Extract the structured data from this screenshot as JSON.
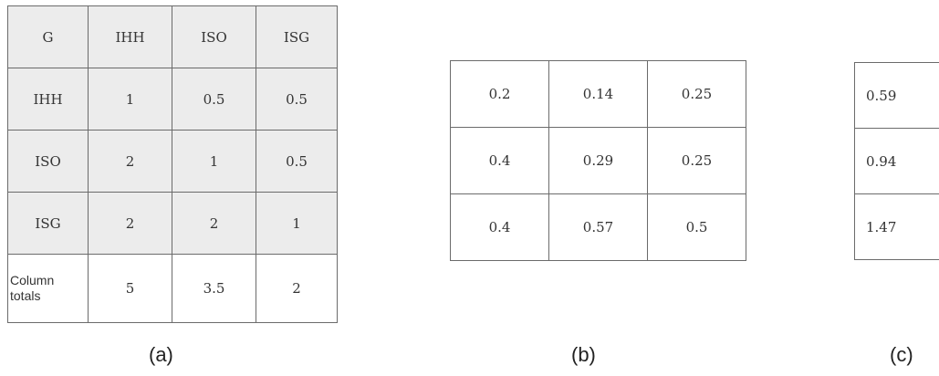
{
  "table_a": {
    "header": [
      "G",
      "IHH",
      "ISO",
      "ISG"
    ],
    "rows": [
      [
        "IHH",
        "1",
        "0.5",
        "0.5"
      ],
      [
        "ISO",
        "2",
        "1",
        "0.5"
      ],
      [
        "ISG",
        "2",
        "2",
        "1"
      ]
    ],
    "totals": {
      "label_line1": "Column",
      "label_line2": "totals",
      "values": [
        "5",
        "3.5",
        "2"
      ]
    }
  },
  "table_b": {
    "rows": [
      [
        "0.2",
        "0.14",
        "0.25"
      ],
      [
        "0.4",
        "0.29",
        "0.25"
      ],
      [
        "0.4",
        "0.57",
        "0.5"
      ]
    ]
  },
  "table_c": {
    "rows": [
      "0.59",
      "0.94",
      "1.47"
    ]
  },
  "captions": {
    "a": "(a)",
    "b": "(b)",
    "c": "(c)"
  }
}
